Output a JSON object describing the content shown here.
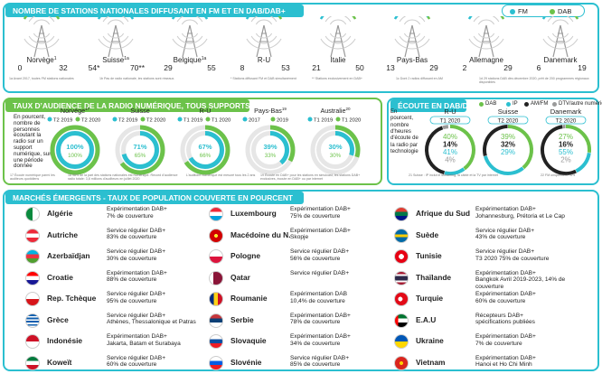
{
  "colors": {
    "teal": "#2bbfd0",
    "green": "#6cc24a",
    "gray": "#9a9a9a",
    "dark": "#222222"
  },
  "panel1": {
    "title": "NOMBRE DE STATIONS NATIONALES DIFFUSANT EN FM ET EN DAB/DAB+",
    "legend": [
      "FM",
      "DAB"
    ],
    "countries": [
      {
        "name": "Norvège",
        "sup": "1",
        "fm": "0",
        "dab": "32",
        "fm_frac": 0.0
      },
      {
        "name": "Suisse",
        "sup": "1a",
        "fm": "54*",
        "dab": "70**",
        "fm_frac": 0.44
      },
      {
        "name": "Belgique",
        "sup": "1a",
        "fm": "29",
        "dab": "55",
        "fm_frac": 0.35
      },
      {
        "name": "R-U",
        "sup": "",
        "fm": "8",
        "dab": "53",
        "fm_frac": 0.13
      },
      {
        "name": "Italie",
        "sup": "",
        "fm": "21",
        "dab": "50",
        "fm_frac": 0.3
      },
      {
        "name": "Pays-Bas",
        "sup": "",
        "fm": "13",
        "dab": "29",
        "fm_frac": 0.31
      },
      {
        "name": "Allemagne",
        "sup": "",
        "fm": "2",
        "dab": "29",
        "fm_frac": 0.06
      },
      {
        "name": "Danemark",
        "sup": "",
        "fm": "6",
        "dab": "19",
        "fm_frac": 0.24
      }
    ],
    "footnotes": [
      "1a  Avant 2017, toutes FM stations nationales",
      "1b  Pas de radio nationale, les stations sont réseaux.",
      "*  Stations diffusant FM et DAB simultanément",
      "**  Stations exclusivement en DAB+",
      "1c  Dont 2 radios diffusant en AM",
      "1d  29 stations DAB dès décembre 2020, prêt de 200 programmes régionaux disponibles"
    ]
  },
  "panel2": {
    "title": "TAUX D’AUDIENCE DE LA RADIO NUMÉRIQUE, TOUS SUPPORTS",
    "intro": [
      "En pourcent,",
      "nombre de",
      "personnes",
      "écoutant la",
      "radio sur un",
      "support",
      "numérique, sur",
      "une période",
      "donnée"
    ],
    "groups": [
      {
        "name": "Norvège",
        "sup": "17",
        "l1": "T2 2019",
        "l2": "T2 2020",
        "v1": "100%",
        "v2": "100%",
        "f1": 1.0,
        "f2": 1.0
      },
      {
        "name": "Suisse",
        "sup": "",
        "l1": "T2 2019",
        "l2": "T2 2020",
        "v1": "71%",
        "v2": "65%",
        "f1": 0.71,
        "f2": 0.65
      },
      {
        "name": "R-U",
        "sup": "",
        "l1": "T1 2019",
        "l2": "T1 2020",
        "v1": "67%",
        "v2": "66%",
        "f1": 0.67,
        "f2": 0.66
      },
      {
        "name": "Pays-Bas",
        "sup": "19",
        "l1": "2017",
        "l2": "2019",
        "v1": "39%",
        "v2": "33%",
        "f1": 0.39,
        "f2": 0.33
      },
      {
        "name": "Australie",
        "sup": "20",
        "l1": "T1 2019",
        "l2": "T1 2020",
        "v1": "30%",
        "v2": "30%",
        "f1": 0.3,
        "f2": 0.3
      }
    ],
    "footnotes": [
      "17  Écoute numérique parmi les auditeurs quotidiens",
      "18  98% de la part des stations nationales est numérique. Record d’audience radio totale: 3,8 millions d’auditeurs en juillet 2020",
      "L’auditoire numérique est mesuré tous les 2 ans",
      "19  Écoute en DAB+ pour les stations en simulcast, les stations DAB+ exclusives, écoute en DAB+ ou par internet"
    ]
  },
  "panel3": {
    "title": "ÉCOUTE EN DAB/DAB+",
    "legend": [
      "DAB",
      "IP",
      "AM/FM",
      "DTV/autre numérique"
    ],
    "intro": [
      "En",
      "pourcent,",
      "nombre",
      "d'heures",
      "d'écoute de",
      "la radio par",
      "technologie"
    ],
    "groups": [
      {
        "name": "R-U",
        "period": "T1 2020",
        "values": [
          "40%",
          "14%",
          "41%",
          "4%"
        ],
        "shares": [
          0.4,
          0.14,
          0.41,
          0.04
        ]
      },
      {
        "name": "Suisse",
        "period": "T2 2020",
        "values": [
          "39%",
          "32%",
          "29%"
        ],
        "shares": [
          0.39,
          0.32,
          0.29,
          0.0
        ]
      },
      {
        "name": "Danemark",
        "period": "T2 2020",
        "values": [
          "27%",
          "16%",
          "55%",
          "2%"
        ],
        "shares": [
          0.27,
          0.16,
          0.55,
          0.02
        ]
      }
    ],
    "footnotes": [
      "21  Suisse : IP inclut le streaming, la câble et la TV par internet",
      "22  FM uniquement : 6%"
    ]
  },
  "panel4": {
    "title": "MARCHÉS ÉMERGENTS - TAUX DE POPULATION COUVERTE EN POURCENT",
    "markets": [
      {
        "name": "Algérie",
        "line1": "Expérimentation DAB+",
        "line2": "7% de couverture",
        "flag": "algeria"
      },
      {
        "name": "Autriche",
        "line1": "Service régulier DAB+",
        "line2": "83% de couverture",
        "flag": "austria"
      },
      {
        "name": "Azerbaïdjan",
        "line1": "Service régulier DAB+",
        "line2": "30% de couverture",
        "flag": "azerbaijan"
      },
      {
        "name": "Croatie",
        "line1": "Expérimentation DAB+",
        "line2": "88% de couverture",
        "flag": "croatia"
      },
      {
        "name": "Rep. Tchèque",
        "line1": "Service régulier DAB+",
        "line2": "95% de couverture",
        "flag": "czech"
      },
      {
        "name": "Grèce",
        "line1": "Service régulier DAB+",
        "line2": "Athènes, Thessalonique et Patras",
        "flag": "greece"
      },
      {
        "name": "Indonésie",
        "line1": "Expérimentation DAB+",
        "line2": "Jakarta, Batam et Surabaya",
        "flag": "indonesia"
      },
      {
        "name": "Koweït",
        "line1": "Service régulier DAB+",
        "line2": "60% de couverture",
        "flag": "kuwait"
      },
      {
        "name": "Luxembourg",
        "line1": "Expérimentation DAB+",
        "line2": "75% de couverture",
        "flag": "luxembourg"
      },
      {
        "name": "Macédoine du N.",
        "line1": "Expérimentation DAB+",
        "line2": "Skopje",
        "flag": "macedonia"
      },
      {
        "name": "Pologne",
        "line1": "Service régulier DAB+",
        "line2": "56% de couverture",
        "flag": "poland"
      },
      {
        "name": "Qatar",
        "line1": "Service régulier DAB+",
        "line2": "",
        "flag": "qatar"
      },
      {
        "name": "Roumanie",
        "line1": "Expérimentation DAB",
        "line2": "10,4% de couverture",
        "flag": "romania"
      },
      {
        "name": "Serbie",
        "line1": "Expérimentation DAB+",
        "line2": "78% de couverture",
        "flag": "serbia"
      },
      {
        "name": "Slovaquie",
        "line1": "Expérimentation DAB+",
        "line2": "34% de couverture",
        "flag": "slovakia"
      },
      {
        "name": "Slovénie",
        "line1": "Service régulier DAB+",
        "line2": "85% de couverture",
        "flag": "slovenia"
      },
      {
        "name": "Afrique du Sud",
        "line1": "Expérimentation DAB+",
        "line2": "Johannesburg, Prétoria et Le Cap",
        "flag": "southafrica"
      },
      {
        "name": "Suède",
        "line1": "Service régulier DAB+",
        "line2": "43% de couverture",
        "flag": "sweden"
      },
      {
        "name": "Tunisie",
        "line1": "Service régulier DAB+",
        "line2": "T3 2020 75% de couverture",
        "flag": "tunisia"
      },
      {
        "name": "Thaïlande",
        "line1": "Expérimentation DAB+",
        "line2": "Bangkok Avril 2019-2023, 14% de couverture",
        "flag": "thailand"
      },
      {
        "name": "Turquie",
        "line1": "Expérimentation DAB+",
        "line2": "60% de couverture",
        "flag": "turkey"
      },
      {
        "name": "E.A.U",
        "line1": "Récepteurs DAB+",
        "line2": "spécifications publiées",
        "flag": "uae"
      },
      {
        "name": "Ukraine",
        "line1": "Expérimentation DAB+",
        "line2": "7% de couverture",
        "flag": "ukraine"
      },
      {
        "name": "Vietnam",
        "line1": "Expérimentation DAB+",
        "line2": "Hanoi et Ho Chi Minh",
        "flag": "vietnam"
      }
    ]
  }
}
